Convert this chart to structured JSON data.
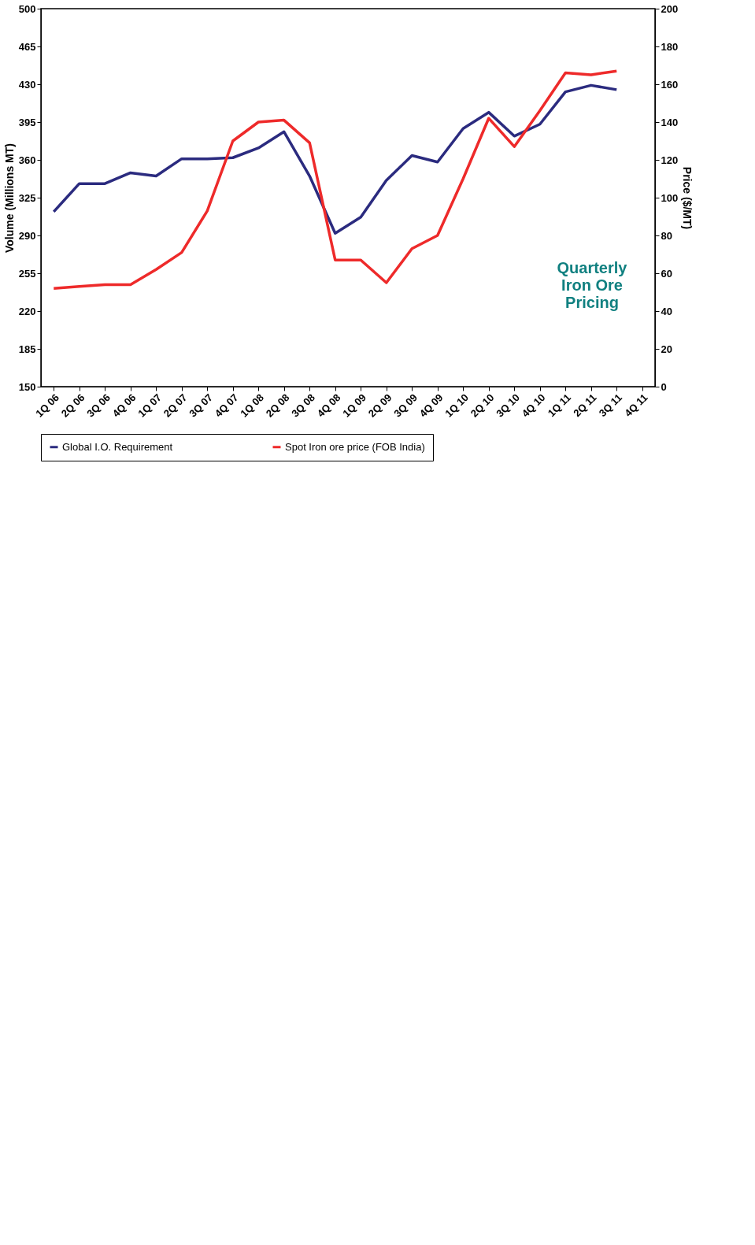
{
  "chart_data": {
    "type": "line",
    "categories": [
      "1Q 06",
      "2Q 06",
      "3Q 06",
      "4Q 06",
      "1Q 07",
      "2Q 07",
      "3Q 07",
      "4Q 07",
      "1Q 08",
      "2Q 08",
      "3Q 08",
      "4Q 08",
      "1Q 09",
      "2Q 09",
      "3Q 09",
      "4Q 09",
      "1Q 10",
      "2Q 10",
      "3Q 10",
      "4Q 10",
      "1Q 11",
      "2Q 11",
      "3Q 11",
      "4Q 11"
    ],
    "ylabel": "Volume (Millions MT)",
    "y2label": "Price ($/MT)",
    "ylim": [
      150,
      500
    ],
    "yticks": [
      150,
      185,
      220,
      255,
      290,
      325,
      360,
      395,
      430,
      465,
      500
    ],
    "y2lim": [
      0,
      200
    ],
    "y2ticks": [
      0,
      20,
      40,
      60,
      80,
      100,
      120,
      140,
      160,
      180,
      200
    ],
    "series": [
      {
        "name": "Global I.O. Requirement",
        "color": "#2b2b7f",
        "values": [
          312,
          338,
          338,
          348,
          345,
          361,
          361,
          362,
          371,
          386,
          345,
          292,
          307,
          341,
          364,
          358,
          389,
          404,
          382,
          393,
          423,
          429,
          425,
          null
        ]
      },
      {
        "name": "Spot Iron ore price (FOB India)",
        "color": "#ee2a2a",
        "axis": "y2",
        "values": [
          52,
          53,
          54,
          54,
          62,
          71,
          93,
          130,
          140,
          141,
          129,
          67,
          67,
          55,
          73,
          80,
          110,
          142,
          127,
          146,
          166,
          165,
          167,
          null
        ]
      }
    ],
    "annotations": [
      "Quarterly Iron Ore Pricing"
    ],
    "legend": "bottom",
    "grid": false
  }
}
